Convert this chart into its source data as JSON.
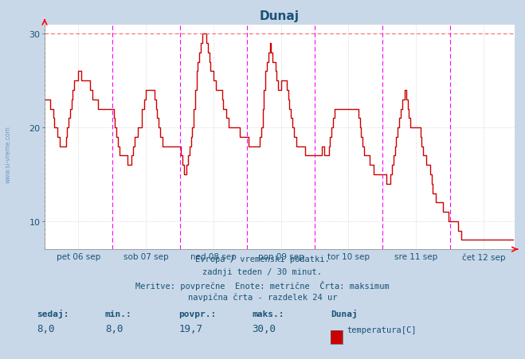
{
  "title": "Dunaj",
  "fig_bg_color": "#c8d8e8",
  "plot_bg_color": "#ffffff",
  "line_color": "#cc0000",
  "grid_color": "#cccccc",
  "dashed_hline_color": "#ff6666",
  "vline_color_magenta": "#ff00ff",
  "vline_color_black": "#444444",
  "ylim": [
    7,
    31
  ],
  "yticks": [
    10,
    20,
    30
  ],
  "text_color": "#1a5276",
  "title_color": "#1a5276",
  "xtick_labels": [
    "pet 06 sep",
    "sob 07 sep",
    "ned 08 sep",
    "pon 09 sep",
    "tor 10 sep",
    "sre 11 sep",
    "čet 12 sep"
  ],
  "footnote_lines": [
    "Evropa / vremenski podatki.",
    "zadnji teden / 30 minut.",
    "Meritve: povprečne  Enote: metrične  Črta: maksimum",
    "navpična črta - razdelek 24 ur"
  ],
  "stats_labels": [
    "sedaj:",
    "min.:",
    "povpr.:",
    "maks.:"
  ],
  "stats_values": [
    "8,0",
    "8,0",
    "19,7",
    "30,0"
  ],
  "legend_station": "Dunaj",
  "legend_series": "temperatura[C]",
  "legend_color": "#cc0000",
  "num_days": 7,
  "intervals_per_day": 48,
  "temperature_data": [
    23,
    23,
    23,
    23,
    22,
    22,
    21,
    20,
    20,
    19,
    19,
    18,
    18,
    18,
    18,
    19,
    20,
    21,
    22,
    23,
    24,
    25,
    25,
    25,
    26,
    26,
    25,
    25,
    25,
    25,
    25,
    25,
    24,
    24,
    23,
    23,
    23,
    23,
    22,
    22,
    22,
    22,
    22,
    22,
    22,
    22,
    22,
    22,
    22,
    21,
    20,
    19,
    18,
    17,
    17,
    17,
    17,
    17,
    17,
    16,
    16,
    16,
    17,
    18,
    19,
    19,
    20,
    20,
    20,
    22,
    22,
    23,
    24,
    24,
    24,
    24,
    24,
    24,
    23,
    22,
    21,
    20,
    19,
    19,
    18,
    18,
    18,
    18,
    18,
    18,
    18,
    18,
    18,
    18,
    18,
    18,
    18,
    17,
    16,
    15,
    15,
    16,
    17,
    18,
    19,
    20,
    22,
    24,
    26,
    27,
    28,
    29,
    30,
    30,
    30,
    29,
    28,
    27,
    26,
    26,
    25,
    25,
    24,
    24,
    24,
    24,
    23,
    22,
    22,
    21,
    21,
    20,
    20,
    20,
    20,
    20,
    20,
    20,
    20,
    19,
    19,
    19,
    19,
    19,
    19,
    18,
    18,
    18,
    18,
    18,
    18,
    18,
    18,
    19,
    20,
    22,
    24,
    26,
    27,
    28,
    29,
    28,
    27,
    27,
    26,
    25,
    24,
    24,
    25,
    25,
    25,
    25,
    24,
    23,
    22,
    21,
    20,
    19,
    19,
    18,
    18,
    18,
    18,
    18,
    18,
    17,
    17,
    17,
    17,
    17,
    17,
    17,
    17,
    17,
    17,
    17,
    17,
    18,
    18,
    17,
    17,
    17,
    18,
    19,
    20,
    21,
    22,
    22,
    22,
    22,
    22,
    22,
    22,
    22,
    22,
    22,
    22,
    22,
    22,
    22,
    22,
    22,
    22,
    21,
    20,
    19,
    18,
    17,
    17,
    17,
    17,
    16,
    16,
    16,
    15,
    15,
    15,
    15,
    15,
    15,
    15,
    15,
    15,
    14,
    14,
    14,
    15,
    16,
    17,
    18,
    19,
    20,
    21,
    22,
    23,
    23,
    24,
    23,
    22,
    21,
    20,
    20,
    20,
    20,
    20,
    20,
    20,
    19,
    18,
    17,
    17,
    16,
    16,
    16,
    15,
    14,
    13,
    13,
    12,
    12,
    12,
    12,
    12,
    11,
    11,
    11,
    11,
    10,
    10,
    10,
    10,
    10,
    10,
    10,
    9,
    9,
    8,
    8,
    8,
    8,
    8,
    8,
    8,
    8,
    8,
    8,
    8,
    8,
    8,
    8,
    8,
    8,
    8,
    8,
    8,
    8,
    8,
    8,
    8,
    8,
    8,
    8,
    8,
    8,
    8,
    8,
    8,
    8,
    8,
    8,
    8,
    8,
    8,
    8
  ]
}
